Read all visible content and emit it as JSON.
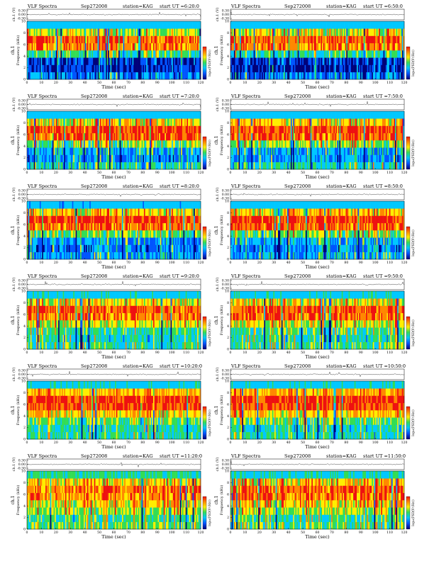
{
  "chart_data": {
    "type": "heatmap",
    "panel_header": {
      "left": "VLF Spectra",
      "date": "Sep272008",
      "station": "station=KAG",
      "start_prefix": "start UT ="
    },
    "x_axis": {
      "label": "Time (sec)",
      "range": [
        0,
        120
      ],
      "ticks": [
        "0",
        "10",
        "20",
        "30",
        "40",
        "50",
        "60",
        "70",
        "80",
        "90",
        "100",
        "110",
        "120"
      ]
    },
    "y_axis": {
      "label": "Frequency (kHz)",
      "range": [
        0,
        10
      ],
      "ticks": [
        "0",
        "2",
        "4",
        "6",
        "8",
        "10"
      ]
    },
    "waveform_axis": {
      "label": "ch.1 (V)",
      "ticks": [
        "0.30",
        "0.00",
        "-0.30"
      ],
      "range": [
        -0.3,
        0.3
      ]
    },
    "channel_label": "ch.1",
    "colorbar": {
      "label": "log₁₀(PSD(V²/Hz))",
      "colors": [
        "#00007a",
        "#0055ff",
        "#00c8ff",
        "#33dd55",
        "#ffee00",
        "#ff8800",
        "#ee1111"
      ]
    },
    "panels": [
      {
        "start_ut": "6:20:0",
        "band_rows": [
          0.26,
          0.14,
          0.18,
          0.45,
          0.78,
          0.82,
          0.6,
          0.35
        ]
      },
      {
        "start_ut": "6:50:0",
        "band_rows": [
          0.24,
          0.12,
          0.16,
          0.44,
          0.78,
          0.84,
          0.62,
          0.34
        ]
      },
      {
        "start_ut": "7:20:0",
        "band_rows": [
          0.38,
          0.26,
          0.3,
          0.52,
          0.82,
          0.86,
          0.64,
          0.38
        ]
      },
      {
        "start_ut": "7:50:0",
        "band_rows": [
          0.4,
          0.28,
          0.32,
          0.54,
          0.83,
          0.86,
          0.66,
          0.38
        ]
      },
      {
        "start_ut": "8:20:0",
        "band_rows": [
          0.3,
          0.24,
          0.3,
          0.5,
          0.8,
          0.86,
          0.66,
          0.32
        ]
      },
      {
        "start_ut": "8:50:0",
        "band_rows": [
          0.32,
          0.26,
          0.32,
          0.52,
          0.82,
          0.88,
          0.68,
          0.34
        ]
      },
      {
        "start_ut": "9:20:0",
        "band_rows": [
          0.46,
          0.4,
          0.46,
          0.6,
          0.8,
          0.84,
          0.64,
          0.4
        ]
      },
      {
        "start_ut": "9:50:0",
        "band_rows": [
          0.46,
          0.42,
          0.46,
          0.6,
          0.8,
          0.84,
          0.64,
          0.4
        ]
      },
      {
        "start_ut": "10:20:0",
        "band_rows": [
          0.44,
          0.42,
          0.5,
          0.66,
          0.86,
          0.9,
          0.72,
          0.4
        ]
      },
      {
        "start_ut": "10:50:0",
        "band_rows": [
          0.42,
          0.4,
          0.5,
          0.66,
          0.86,
          0.9,
          0.72,
          0.4
        ]
      },
      {
        "start_ut": "11:20:0",
        "band_rows": [
          0.5,
          0.46,
          0.56,
          0.66,
          0.76,
          0.8,
          0.66,
          0.44
        ]
      },
      {
        "start_ut": "11:50:0",
        "band_rows": [
          0.48,
          0.44,
          0.54,
          0.66,
          0.78,
          0.8,
          0.66,
          0.42
        ]
      }
    ]
  }
}
